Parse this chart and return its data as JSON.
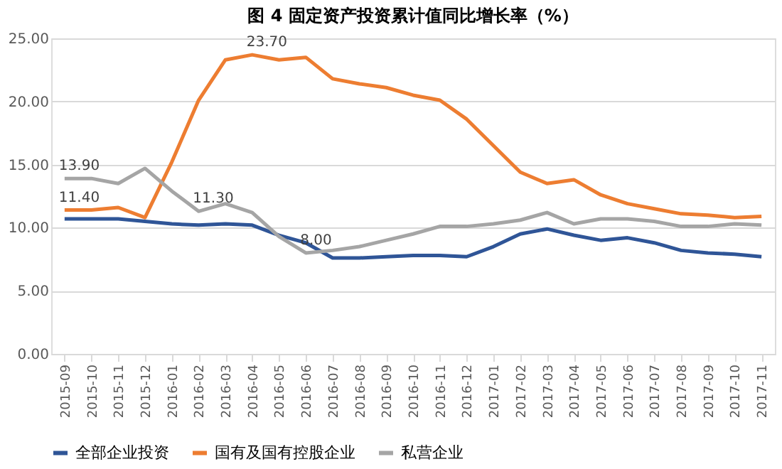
{
  "chart_data": {
    "type": "line",
    "title": "图 4 固定资产投资累计值同比增长率（%）",
    "categories": [
      "2015-09",
      "2015-10",
      "2015-11",
      "2015-12",
      "2016-01",
      "2016-02",
      "2016-03",
      "2016-04",
      "2016-05",
      "2016-06",
      "2016-07",
      "2016-08",
      "2016-09",
      "2016-10",
      "2016-11",
      "2016-12",
      "2017-01",
      "2017-02",
      "2017-03",
      "2017-04",
      "2017-05",
      "2017-06",
      "2017-07",
      "2017-08",
      "2017-09",
      "2017-10",
      "2017-11"
    ],
    "series": [
      {
        "name": "全部企业投资",
        "color": "#2f5597",
        "values": [
          10.7,
          10.7,
          10.7,
          10.5,
          10.3,
          10.2,
          10.3,
          10.2,
          9.4,
          8.8,
          7.6,
          7.6,
          7.7,
          7.8,
          7.8,
          7.7,
          8.5,
          9.5,
          9.9,
          9.4,
          9.0,
          9.2,
          8.8,
          8.2,
          8.0,
          7.9,
          7.7
        ]
      },
      {
        "name": "国有及国有控股企业",
        "color": "#ed7d31",
        "values": [
          11.4,
          11.4,
          11.6,
          10.8,
          15.2,
          20.1,
          23.3,
          23.7,
          23.3,
          23.5,
          21.8,
          21.4,
          21.1,
          20.5,
          20.1,
          18.6,
          16.5,
          14.4,
          13.5,
          13.8,
          12.6,
          11.9,
          11.5,
          11.1,
          11.0,
          10.8,
          10.9
        ]
      },
      {
        "name": "私营企业",
        "color": "#a5a5a5",
        "values": [
          13.9,
          13.9,
          13.5,
          14.7,
          12.9,
          11.3,
          11.9,
          11.2,
          9.3,
          8.0,
          8.2,
          8.5,
          9.0,
          9.5,
          10.1,
          10.1,
          10.3,
          10.6,
          11.2,
          10.3,
          10.7,
          10.7,
          10.5,
          10.1,
          10.1,
          10.3,
          10.2
        ]
      }
    ],
    "ylim": [
      0,
      25
    ],
    "yticks": [
      {
        "value": 0,
        "label": "0.00"
      },
      {
        "value": 5,
        "label": "5.00"
      },
      {
        "value": 10,
        "label": "10.00"
      },
      {
        "value": 15,
        "label": "15.00"
      },
      {
        "value": 20,
        "label": "20.00"
      },
      {
        "value": 25,
        "label": "25.00"
      }
    ],
    "grid": "y",
    "legend": "bottom",
    "marker": "none",
    "line_style": "solid",
    "annotations": [
      {
        "text": "11.40",
        "x": "2015-09",
        "y": 11.4
      },
      {
        "text": "13.90",
        "x": "2015-09",
        "y": 13.9
      },
      {
        "text": "23.70",
        "x": "2016-04",
        "y": 23.7
      },
      {
        "text": "11.30",
        "x": "2016-02",
        "y": 11.3
      },
      {
        "text": "8.00",
        "x": "2016-06",
        "y": 8.0
      }
    ]
  }
}
